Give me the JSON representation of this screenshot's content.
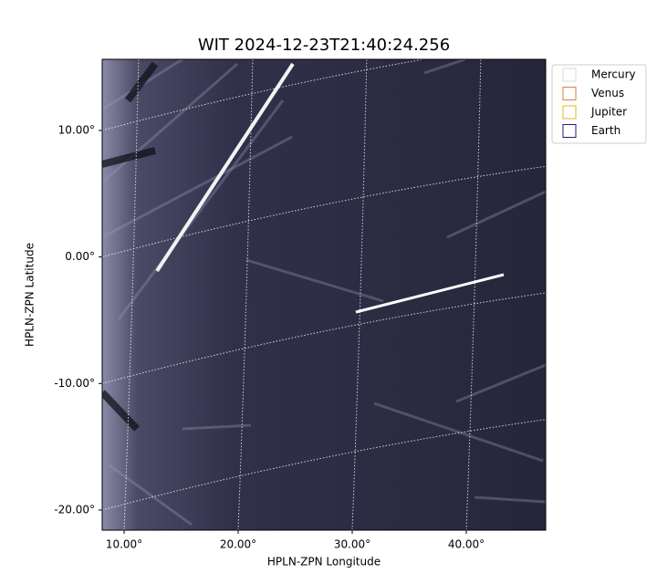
{
  "chart_data": {
    "type": "image",
    "title": "WIT 2024-12-23T21:40:24.256",
    "xlabel": "HPLN-ZPN Longitude",
    "ylabel": "HPLN-ZPN Latitude",
    "xlim": [
      8.08,
      46.96
    ],
    "ylim": [
      -21.59,
      15.62
    ],
    "xticks": [
      {
        "value": 10,
        "label": "10.00°"
      },
      {
        "value": 20,
        "label": "20.00°"
      },
      {
        "value": 30,
        "label": "30.00°"
      },
      {
        "value": 40,
        "label": "40.00°"
      }
    ],
    "yticks": [
      {
        "value": 10,
        "label": "10.00°"
      },
      {
        "value": 0,
        "label": "0.00°"
      },
      {
        "value": -10,
        "label": "-10.00°"
      },
      {
        "value": -20,
        "label": "-20.00°"
      }
    ],
    "grid": true,
    "legend_position": "outside-right",
    "series": [
      {
        "name": "Mercury",
        "color": "#d9d9d9"
      },
      {
        "name": "Venus",
        "color": "#e07b39"
      },
      {
        "name": "Jupiter",
        "color": "#e6b422"
      },
      {
        "name": "Earth",
        "color": "#1c1c7a"
      }
    ]
  }
}
